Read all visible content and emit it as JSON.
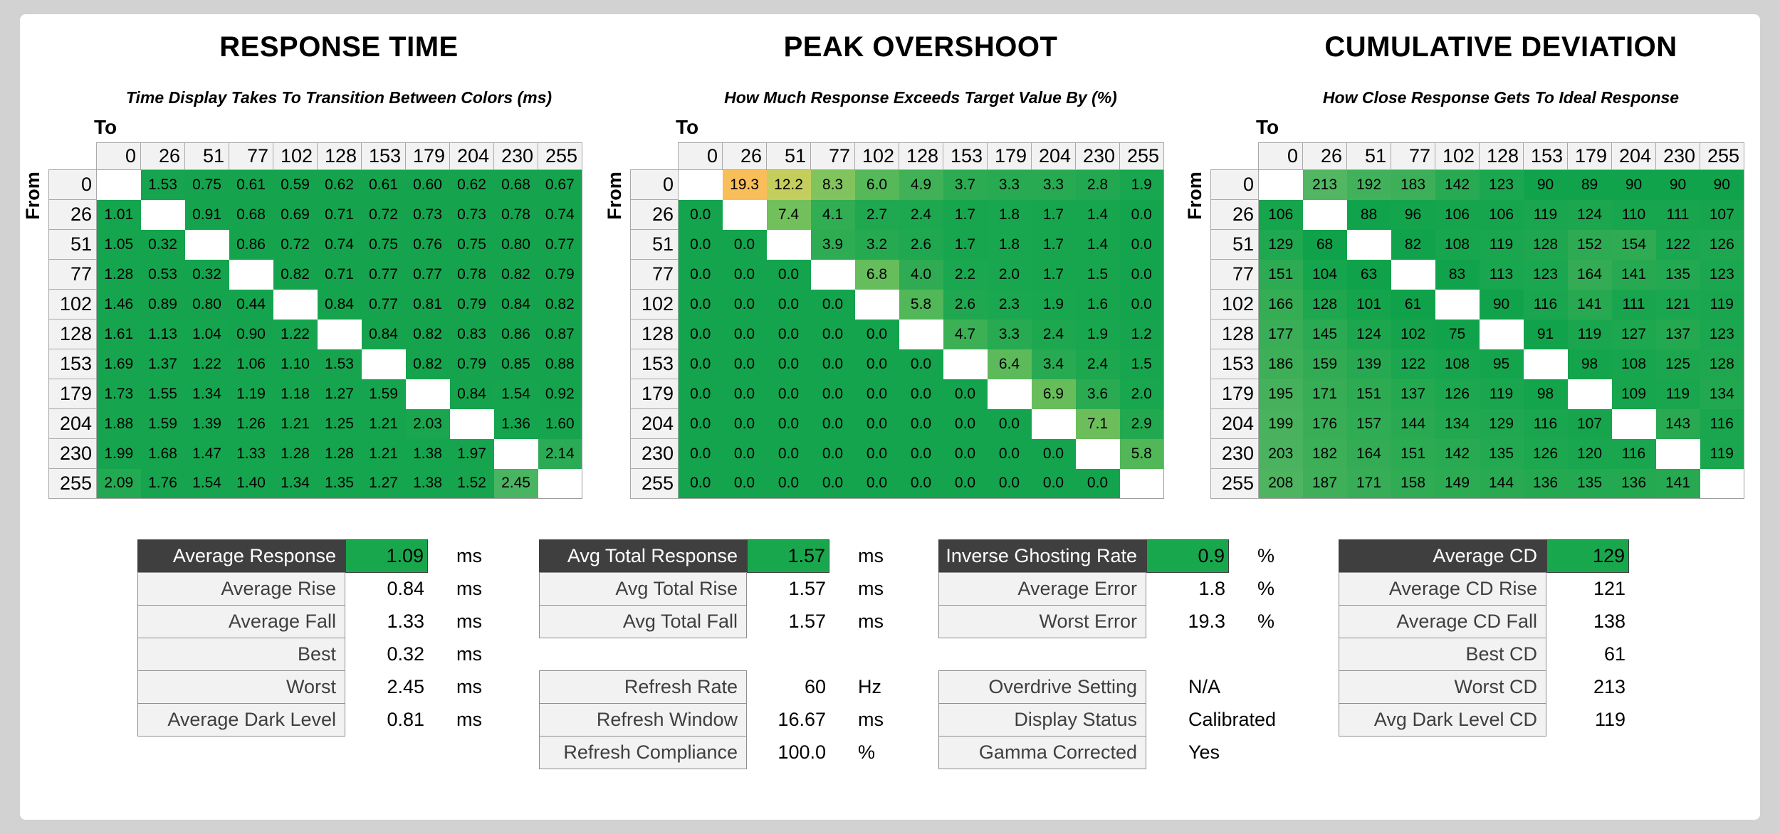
{
  "page": {
    "background": "#d2d2d2",
    "card_background": "#ffffff"
  },
  "theme": {
    "base_green": "#14a44d",
    "summary_green": "#19a74d",
    "overshoot_orange": "#f7bd59",
    "dark_header_bg": "#3f3f3f",
    "header_cell_bg": "#f2f2f2",
    "grid_border": "#a9a9a9",
    "summary_border": "#8f8f8f",
    "label_text": "#3f3f3f"
  },
  "scales": {
    "response": [
      [
        0,
        [
          20,
          164,
          77
        ]
      ],
      [
        2.0,
        [
          22,
          165,
          78
        ]
      ],
      [
        2.15,
        [
          44,
          171,
          85
        ]
      ],
      [
        2.45,
        [
          73,
          180,
          97
        ]
      ]
    ],
    "overshoot": [
      [
        0,
        [
          20,
          164,
          77
        ]
      ],
      [
        2,
        [
          24,
          166,
          78
        ]
      ],
      [
        4,
        [
          47,
          172,
          83
        ]
      ],
      [
        5,
        [
          66,
          178,
          86
        ]
      ],
      [
        6,
        [
          85,
          184,
          89
        ]
      ],
      [
        7,
        [
          106,
          190,
          91
        ]
      ],
      [
        8.5,
        [
          132,
          197,
          94
        ]
      ],
      [
        12.5,
        [
          200,
          207,
          93
        ]
      ],
      [
        19.5,
        [
          248,
          189,
          89
        ]
      ]
    ],
    "cd": [
      [
        60,
        [
          16,
          162,
          74
        ]
      ],
      [
        90,
        [
          17,
          163,
          75
        ]
      ],
      [
        125,
        [
          28,
          167,
          79
        ]
      ],
      [
        145,
        [
          42,
          170,
          82
        ]
      ],
      [
        185,
        [
          61,
          175,
          88
        ]
      ],
      [
        215,
        [
          84,
          182,
          99
        ]
      ]
    ]
  },
  "chart_data": [
    {
      "type": "heatmap",
      "title": "RESPONSE TIME",
      "subtitle": "Time Display Takes To Transition Between Colors (ms)",
      "unit": "ms",
      "decimals": 2,
      "color_scale": "response",
      "x_label": "To",
      "y_label": "From",
      "x": [
        0,
        26,
        51,
        77,
        102,
        128,
        153,
        179,
        204,
        230,
        255
      ],
      "y": [
        0,
        26,
        51,
        77,
        102,
        128,
        153,
        179,
        204,
        230,
        255
      ],
      "values": [
        [
          null,
          1.53,
          0.75,
          0.61,
          0.59,
          0.62,
          0.61,
          0.6,
          0.62,
          0.68,
          0.67
        ],
        [
          1.01,
          null,
          0.91,
          0.68,
          0.69,
          0.71,
          0.72,
          0.73,
          0.73,
          0.78,
          0.74
        ],
        [
          1.05,
          0.32,
          null,
          0.86,
          0.72,
          0.74,
          0.75,
          0.76,
          0.75,
          0.8,
          0.77
        ],
        [
          1.28,
          0.53,
          0.32,
          null,
          0.82,
          0.71,
          0.77,
          0.77,
          0.78,
          0.82,
          0.79
        ],
        [
          1.46,
          0.89,
          0.8,
          0.44,
          null,
          0.84,
          0.77,
          0.81,
          0.79,
          0.84,
          0.82
        ],
        [
          1.61,
          1.13,
          1.04,
          0.9,
          1.22,
          null,
          0.84,
          0.82,
          0.83,
          0.86,
          0.87
        ],
        [
          1.69,
          1.37,
          1.22,
          1.06,
          1.1,
          1.53,
          null,
          0.82,
          0.79,
          0.85,
          0.88
        ],
        [
          1.73,
          1.55,
          1.34,
          1.19,
          1.18,
          1.27,
          1.59,
          null,
          0.84,
          1.54,
          0.92
        ],
        [
          1.88,
          1.59,
          1.39,
          1.26,
          1.21,
          1.25,
          1.21,
          2.03,
          null,
          1.36,
          1.6
        ],
        [
          1.99,
          1.68,
          1.47,
          1.33,
          1.28,
          1.28,
          1.21,
          1.38,
          1.97,
          null,
          2.14
        ],
        [
          2.09,
          1.76,
          1.54,
          1.4,
          1.34,
          1.35,
          1.27,
          1.38,
          1.52,
          2.45,
          null
        ]
      ]
    },
    {
      "type": "heatmap",
      "title": "PEAK OVERSHOOT",
      "subtitle": "How Much Response Exceeds Target Value By (%)",
      "unit": "%",
      "decimals": 1,
      "color_scale": "overshoot",
      "x_label": "To",
      "y_label": "From",
      "x": [
        0,
        26,
        51,
        77,
        102,
        128,
        153,
        179,
        204,
        230,
        255
      ],
      "y": [
        0,
        26,
        51,
        77,
        102,
        128,
        153,
        179,
        204,
        230,
        255
      ],
      "values": [
        [
          null,
          19.3,
          12.2,
          8.3,
          6.0,
          4.9,
          3.7,
          3.3,
          3.3,
          2.8,
          1.9
        ],
        [
          0.0,
          null,
          7.4,
          4.1,
          2.7,
          2.4,
          1.7,
          1.8,
          1.7,
          1.4,
          0.0
        ],
        [
          0.0,
          0.0,
          null,
          3.9,
          3.2,
          2.6,
          1.7,
          1.8,
          1.7,
          1.4,
          0.0
        ],
        [
          0.0,
          0.0,
          0.0,
          null,
          6.8,
          4.0,
          2.2,
          2.0,
          1.7,
          1.5,
          0.0
        ],
        [
          0.0,
          0.0,
          0.0,
          0.0,
          null,
          5.8,
          2.6,
          2.3,
          1.9,
          1.6,
          0.0
        ],
        [
          0.0,
          0.0,
          0.0,
          0.0,
          0.0,
          null,
          4.7,
          3.3,
          2.4,
          1.9,
          1.2
        ],
        [
          0.0,
          0.0,
          0.0,
          0.0,
          0.0,
          0.0,
          null,
          6.4,
          3.4,
          2.4,
          1.5
        ],
        [
          0.0,
          0.0,
          0.0,
          0.0,
          0.0,
          0.0,
          0.0,
          null,
          6.9,
          3.6,
          2.0
        ],
        [
          0.0,
          0.0,
          0.0,
          0.0,
          0.0,
          0.0,
          0.0,
          0.0,
          null,
          7.1,
          2.9
        ],
        [
          0.0,
          0.0,
          0.0,
          0.0,
          0.0,
          0.0,
          0.0,
          0.0,
          0.0,
          null,
          5.8
        ],
        [
          0.0,
          0.0,
          0.0,
          0.0,
          0.0,
          0.0,
          0.0,
          0.0,
          0.0,
          0.0,
          null
        ]
      ]
    },
    {
      "type": "heatmap",
      "title": "CUMULATIVE DEVIATION",
      "subtitle": "How Close Response Gets To Ideal Response",
      "unit": "",
      "decimals": 0,
      "color_scale": "cd",
      "x_label": "To",
      "y_label": "From",
      "x": [
        0,
        26,
        51,
        77,
        102,
        128,
        153,
        179,
        204,
        230,
        255
      ],
      "y": [
        0,
        26,
        51,
        77,
        102,
        128,
        153,
        179,
        204,
        230,
        255
      ],
      "values": [
        [
          null,
          213,
          192,
          183,
          142,
          123,
          90,
          89,
          90,
          90,
          90
        ],
        [
          106,
          null,
          88,
          96,
          106,
          106,
          119,
          124,
          110,
          111,
          107
        ],
        [
          129,
          68,
          null,
          82,
          108,
          119,
          128,
          152,
          154,
          122,
          126
        ],
        [
          151,
          104,
          63,
          null,
          83,
          113,
          123,
          164,
          141,
          135,
          123
        ],
        [
          166,
          128,
          101,
          61,
          null,
          90,
          116,
          141,
          111,
          121,
          119
        ],
        [
          177,
          145,
          124,
          102,
          75,
          null,
          91,
          119,
          127,
          137,
          123
        ],
        [
          186,
          159,
          139,
          122,
          108,
          95,
          null,
          98,
          108,
          125,
          128
        ],
        [
          195,
          171,
          151,
          137,
          126,
          119,
          98,
          null,
          109,
          119,
          134
        ],
        [
          199,
          176,
          157,
          144,
          134,
          129,
          116,
          107,
          null,
          143,
          116
        ],
        [
          203,
          182,
          164,
          151,
          142,
          135,
          126,
          120,
          116,
          null,
          119
        ],
        [
          208,
          187,
          171,
          158,
          149,
          144,
          136,
          135,
          136,
          141,
          null
        ]
      ]
    }
  ],
  "summaries": [
    {
      "groups": [
        {
          "rows": [
            {
              "label": "Average Response",
              "value": "1.09",
              "unit": "ms",
              "style": "header"
            },
            {
              "label": "Average Rise",
              "value": "0.84",
              "unit": "ms"
            },
            {
              "label": "Average Fall",
              "value": "1.33",
              "unit": "ms"
            },
            {
              "label": "Best",
              "value": "0.32",
              "unit": "ms"
            },
            {
              "label": "Worst",
              "value": "2.45",
              "unit": "ms"
            },
            {
              "label": "Average Dark Level",
              "value": "0.81",
              "unit": "ms"
            }
          ]
        }
      ]
    },
    {
      "groups": [
        {
          "rows": [
            {
              "label": "Avg Total Response",
              "value": "1.57",
              "unit": "ms",
              "style": "header"
            },
            {
              "label": "Avg Total Rise",
              "value": "1.57",
              "unit": "ms"
            },
            {
              "label": "Avg Total Fall",
              "value": "1.57",
              "unit": "ms"
            }
          ]
        },
        {
          "rows": [
            {
              "label": "Refresh Rate",
              "value": "60",
              "unit": "Hz"
            },
            {
              "label": "Refresh Window",
              "value": "16.67",
              "unit": "ms"
            },
            {
              "label": "Refresh Compliance",
              "value": "100.0",
              "unit": "%"
            }
          ]
        }
      ]
    },
    {
      "groups": [
        {
          "rows": [
            {
              "label": "Inverse Ghosting Rate",
              "value": "0.9",
              "unit": "%",
              "style": "header"
            },
            {
              "label": "Average Error",
              "value": "1.8",
              "unit": "%"
            },
            {
              "label": "Worst Error",
              "value": "19.3",
              "unit": "%"
            }
          ]
        },
        {
          "rows": [
            {
              "label": "Overdrive Setting",
              "value": "N/A",
              "unit": "",
              "align": "left"
            },
            {
              "label": "Display Status",
              "value": "Calibrated",
              "unit": "",
              "align": "left"
            },
            {
              "label": "Gamma Corrected",
              "value": "Yes",
              "unit": "",
              "align": "left"
            }
          ]
        }
      ]
    },
    {
      "groups": [
        {
          "rows": [
            {
              "label": "Average CD",
              "value": "129",
              "unit": "",
              "style": "header"
            },
            {
              "label": "Average CD Rise",
              "value": "121",
              "unit": ""
            },
            {
              "label": "Average CD Fall",
              "value": "138",
              "unit": ""
            },
            {
              "label": "Best CD",
              "value": "61",
              "unit": ""
            },
            {
              "label": "Worst CD",
              "value": "213",
              "unit": ""
            },
            {
              "label": "Avg Dark Level CD",
              "value": "119",
              "unit": ""
            }
          ]
        }
      ]
    }
  ]
}
